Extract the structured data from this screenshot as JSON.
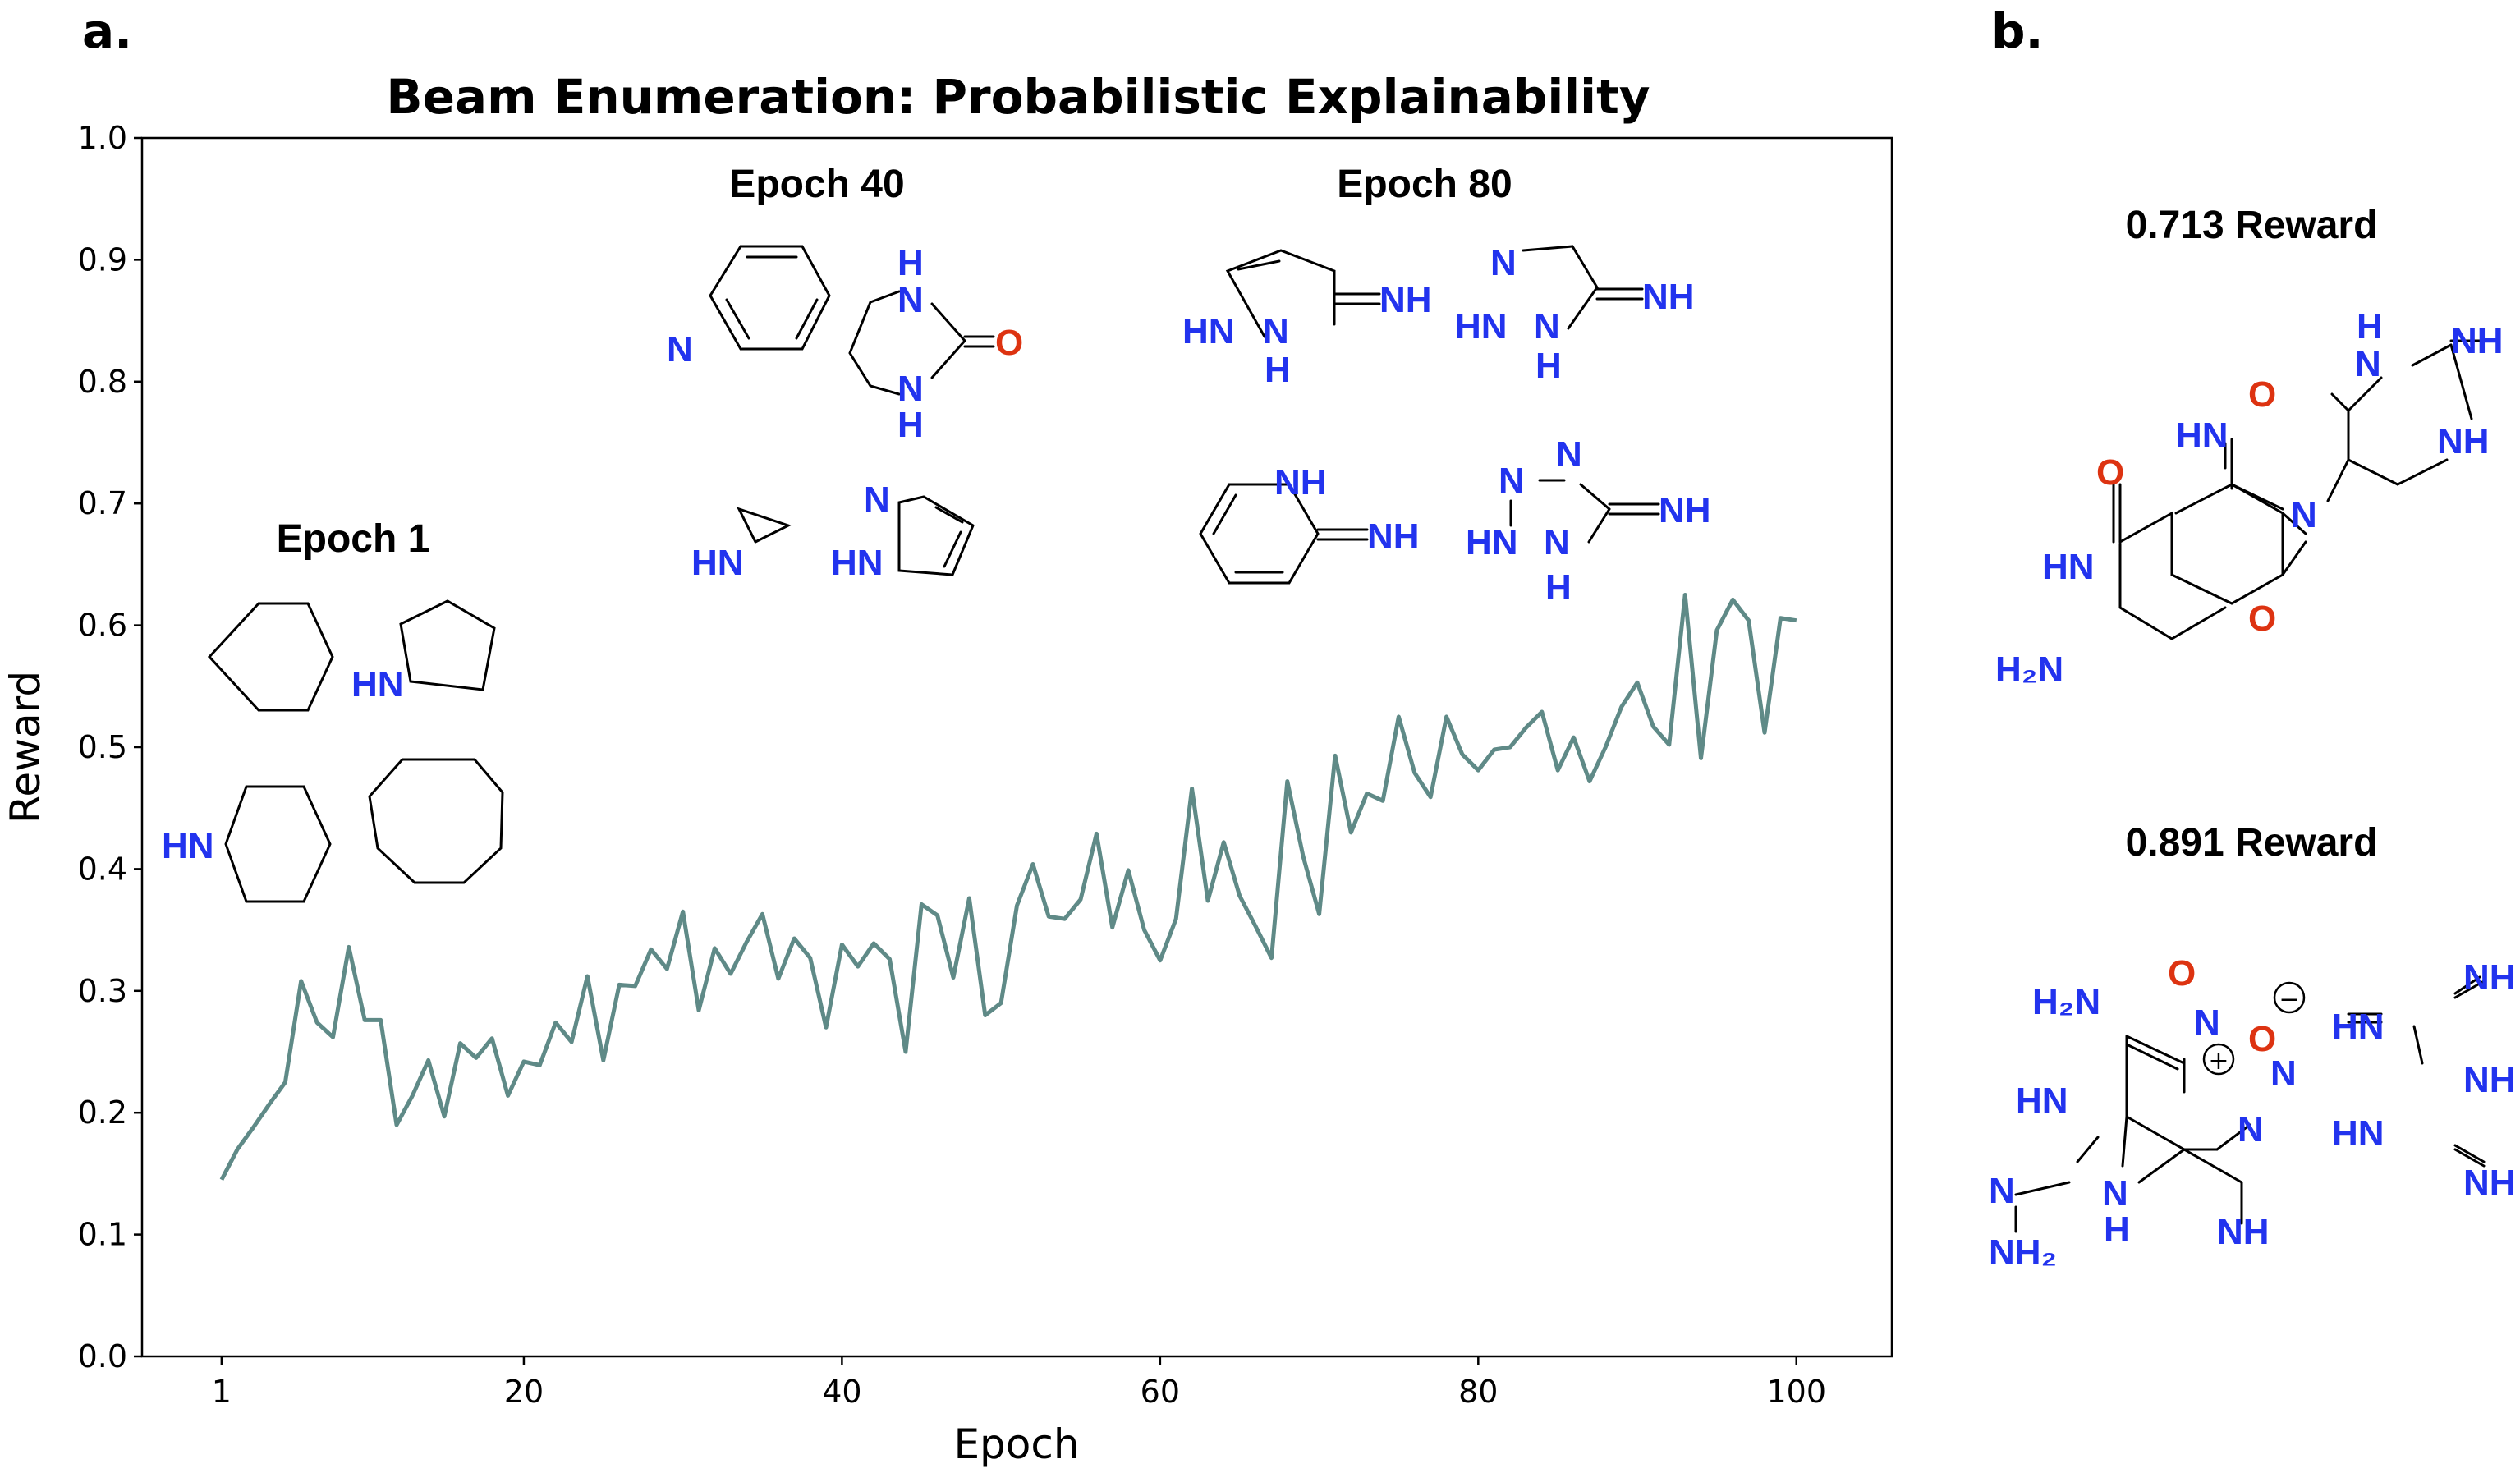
{
  "panels": {
    "a": "a.",
    "b": "b."
  },
  "chart_data": {
    "type": "line",
    "title": "Beam Enumeration: Probabilistic Explainability",
    "xlabel": "Epoch",
    "ylabel": "Reward",
    "xlim": [
      -4,
      106
    ],
    "ylim": [
      0.0,
      1.0
    ],
    "x_ticks": [
      "1",
      "20",
      "40",
      "60",
      "80",
      "100"
    ],
    "y_ticks": [
      "0.0",
      "0.1",
      "0.2",
      "0.3",
      "0.4",
      "0.5",
      "0.6",
      "0.7",
      "0.8",
      "0.9",
      "1.0"
    ],
    "grid": false,
    "line_color": "#5f8a87",
    "series": [
      {
        "x": [
          1,
          2,
          3,
          4,
          5,
          6,
          7,
          8,
          9,
          10,
          11,
          12,
          13,
          14,
          15,
          16,
          17,
          18,
          19,
          20,
          21,
          22,
          23,
          24,
          25,
          26,
          27,
          28,
          29,
          30,
          31,
          32,
          33,
          34,
          35,
          36,
          37,
          38,
          39,
          40,
          41,
          42,
          43,
          44,
          45,
          46,
          47,
          48,
          49,
          50,
          51,
          52,
          53,
          54,
          55,
          56,
          57,
          58,
          59,
          60,
          61,
          62,
          63,
          64,
          65,
          66,
          67,
          68,
          69,
          70,
          71,
          72,
          73,
          74,
          75,
          76,
          77,
          78,
          79,
          80,
          81,
          82,
          83,
          84,
          85,
          86,
          87,
          88,
          89,
          90,
          91,
          92,
          93,
          94,
          95,
          96,
          97,
          98,
          99,
          100
        ],
        "values": [
          0.145,
          0.17,
          0.188,
          0.207,
          0.225,
          0.308,
          0.274,
          0.262,
          0.336,
          0.276,
          0.276,
          0.19,
          0.214,
          0.243,
          0.197,
          0.257,
          0.245,
          0.261,
          0.214,
          0.242,
          0.239,
          0.274,
          0.258,
          0.312,
          0.243,
          0.305,
          0.304,
          0.334,
          0.318,
          0.365,
          0.284,
          0.335,
          0.314,
          0.34,
          0.363,
          0.31,
          0.343,
          0.327,
          0.27,
          0.338,
          0.32,
          0.339,
          0.326,
          0.25,
          0.371,
          0.362,
          0.311,
          0.376,
          0.28,
          0.29,
          0.37,
          0.404,
          0.361,
          0.359,
          0.375,
          0.429,
          0.352,
          0.399,
          0.35,
          0.325,
          0.359,
          0.466,
          0.374,
          0.422,
          0.378,
          0.353,
          0.327,
          0.472,
          0.41,
          0.363,
          0.493,
          0.43,
          0.462,
          0.456,
          0.525,
          0.479,
          0.459,
          0.525,
          0.494,
          0.481,
          0.498,
          0.5,
          0.516,
          0.529,
          0.481,
          0.508,
          0.472,
          0.5,
          0.533,
          0.553,
          0.517,
          0.502,
          0.625,
          0.491,
          0.596,
          0.621,
          0.604,
          0.512,
          0.606,
          0.604
        ]
      }
    ]
  },
  "annotations": {
    "epoch1": "Epoch 1",
    "epoch40": "Epoch 40",
    "epoch80": "Epoch 80",
    "reward1": "0.713 Reward",
    "reward2": "0.891 Reward"
  },
  "atom_labels": {
    "hn": "HN",
    "n": "N",
    "h": "H",
    "o": "O",
    "nh": "NH",
    "hn_eq": "HN",
    "h2n": "H₂N",
    "nh2": "NH₂",
    "h2n_sub": "H₂N",
    "nh2_sub": "NH₂",
    "plus": "+",
    "minus": "−"
  }
}
